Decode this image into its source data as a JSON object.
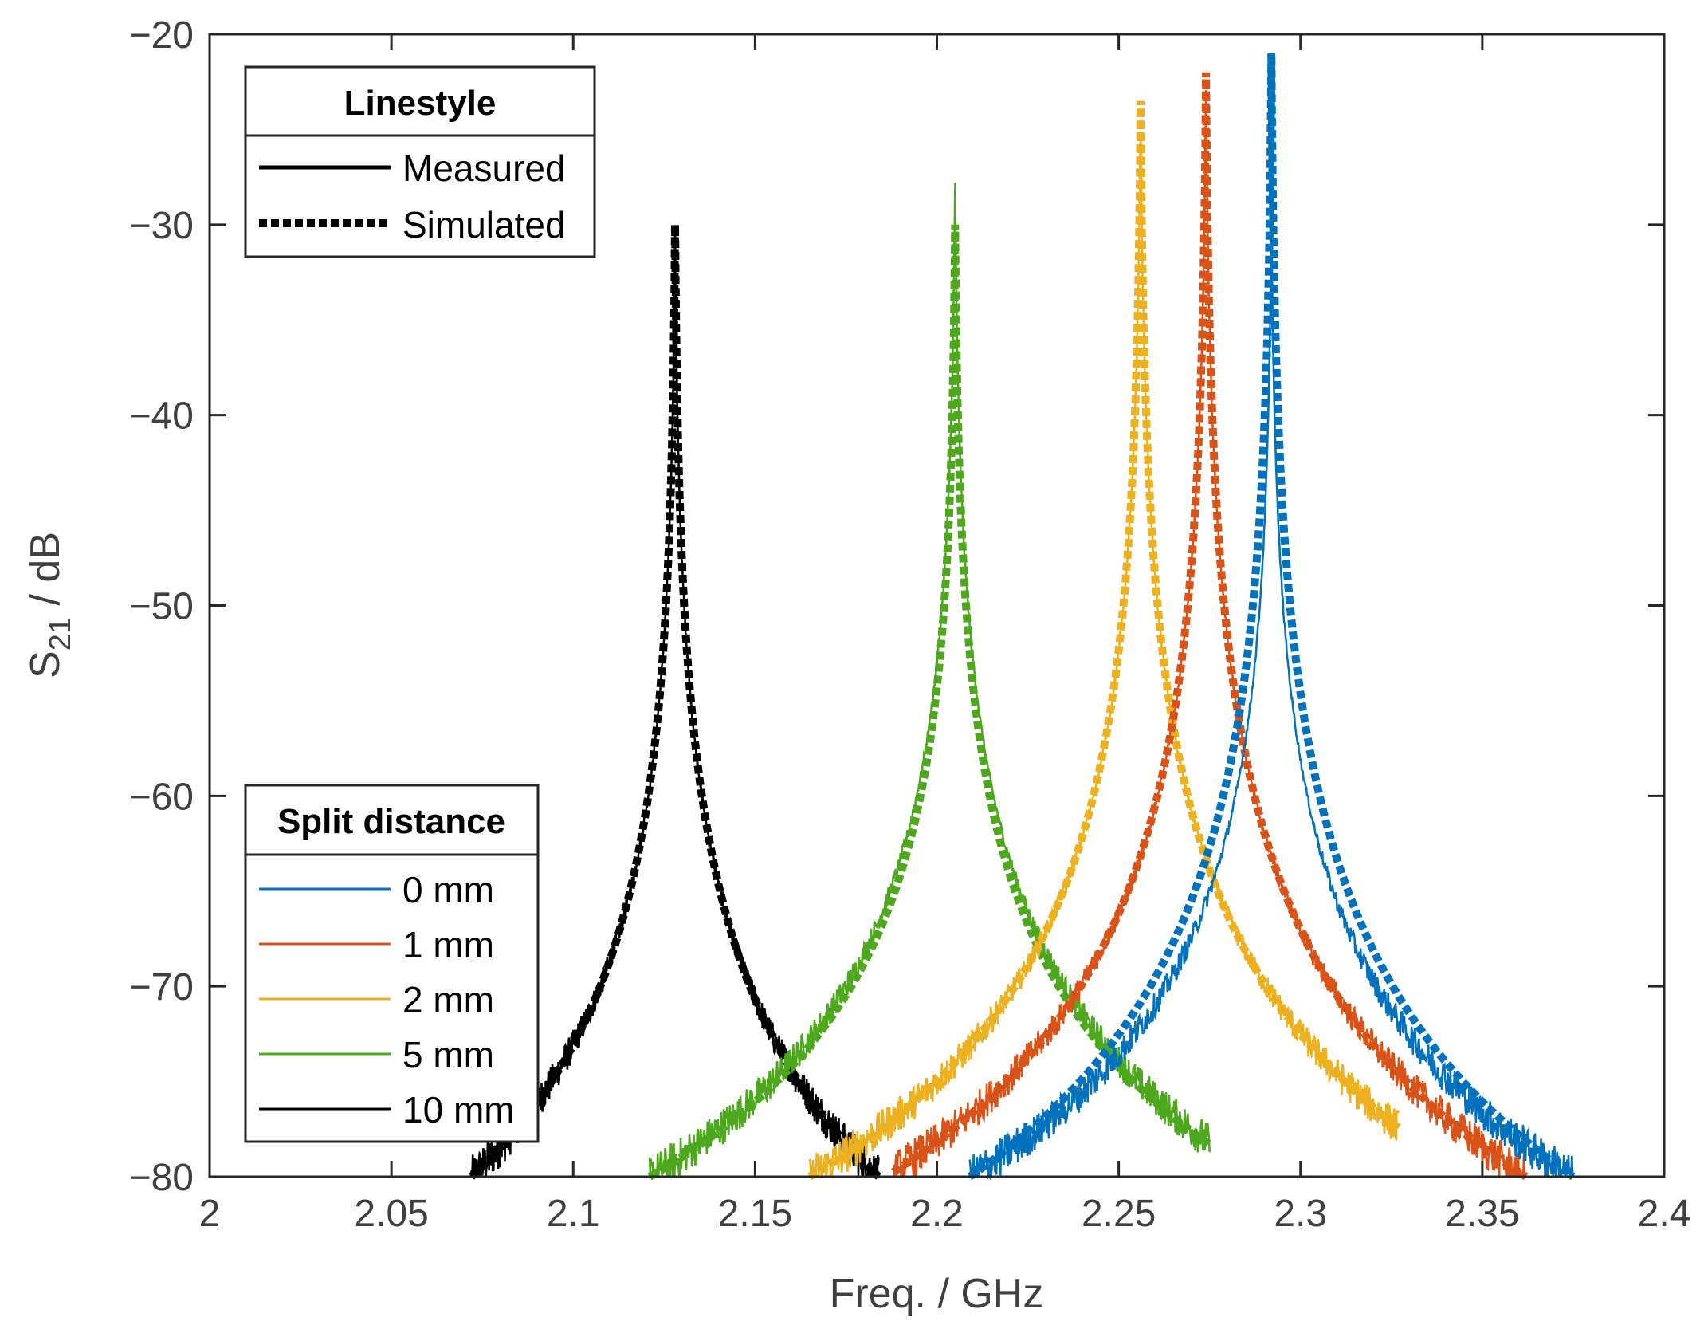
{
  "chart_data": {
    "type": "line",
    "xlabel": "Freq. / GHz",
    "ylabel_main": "S",
    "ylabel_sub": "21",
    "ylabel_unit": " / dB",
    "xlim": [
      2,
      2.4
    ],
    "ylim": [
      -80,
      -20
    ],
    "xticks": [
      2,
      2.05,
      2.1,
      2.15,
      2.2,
      2.25,
      2.3,
      2.35,
      2.4
    ],
    "xtick_labels": [
      "2",
      "2.05",
      "2.1",
      "2.15",
      "2.2",
      "2.25",
      "2.3",
      "2.35",
      "2.4"
    ],
    "yticks": [
      -80,
      -70,
      -60,
      -50,
      -40,
      -30,
      -20
    ],
    "ytick_labels": [
      "−80",
      "−70",
      "−60",
      "−50",
      "−40",
      "−30",
      "−20"
    ],
    "grid": false,
    "linestyle_legend": {
      "title": "Linestyle",
      "position": "top-left",
      "entries": [
        {
          "label": "Measured",
          "style": "solid"
        },
        {
          "label": "Simulated",
          "style": "dotted"
        }
      ]
    },
    "series_legend": {
      "title": "Split distance",
      "position": "bottom-left",
      "entries": [
        "0 mm",
        "1 mm",
        "2 mm",
        "5 mm",
        "10 mm"
      ]
    },
    "series": [
      {
        "name": "0 mm",
        "color": "#0072BD",
        "f0": 2.292,
        "peak_measured": -29.0,
        "peak_simulated": -21.0,
        "x_range": [
          2.209,
          2.375
        ]
      },
      {
        "name": "1 mm",
        "color": "#D95319",
        "f0": 2.274,
        "peak_measured": -22.0,
        "peak_simulated": -22.0,
        "x_range": [
          2.188,
          2.362
        ]
      },
      {
        "name": "2 mm",
        "color": "#EDB120",
        "f0": 2.256,
        "peak_measured": -23.5,
        "peak_simulated": -23.5,
        "x_range": [
          2.165,
          2.327
        ]
      },
      {
        "name": "5 mm",
        "color": "#4DA81E",
        "f0": 2.205,
        "peak_measured": -27.5,
        "peak_simulated": -30.0,
        "x_range": [
          2.121,
          2.275
        ]
      },
      {
        "name": "10 mm",
        "color": "#000000",
        "f0": 2.128,
        "peak_measured": -30.0,
        "peak_simulated": -30.0,
        "x_range": [
          2.072,
          2.184
        ]
      }
    ]
  }
}
